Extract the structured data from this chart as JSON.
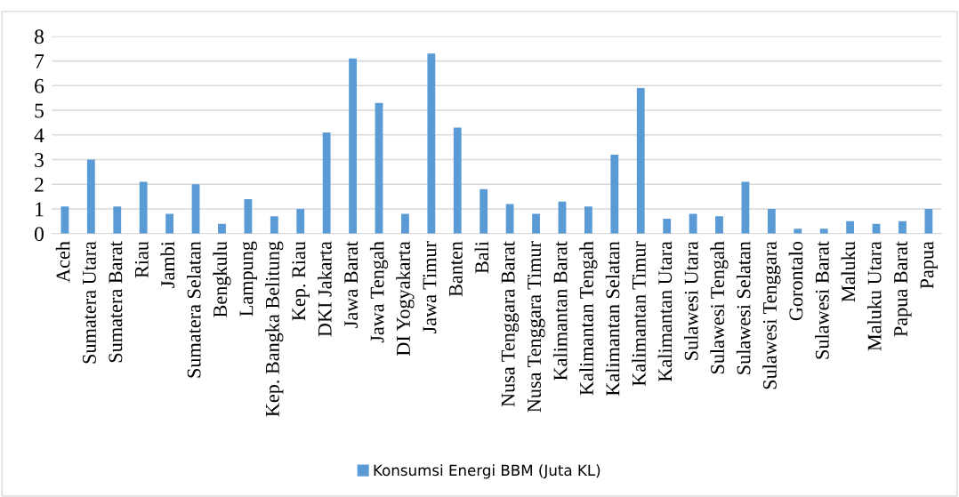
{
  "chart_data": {
    "type": "bar",
    "categories": [
      "Aceh",
      "Sumatera Utara",
      "Sumatera Barat",
      "Riau",
      "Jambi",
      "Sumatera Selatan",
      "Bengkulu",
      "Lampung",
      "Kep. Bangka Belitung",
      "Kep. Riau",
      "DKI Jakarta",
      "Jawa Barat",
      "Jawa Tengah",
      "DI Yogyakarta",
      "Jawa Timur",
      "Banten",
      "Bali",
      "Nusa Tenggara Barat",
      "Nusa Tenggara Timur",
      "Kalimantan Barat",
      "Kalimantan Tengah",
      "Kalimantan Selatan",
      "Kalimantan Timur",
      "Kalimantan Utara",
      "Sulawesi Utara",
      "Sulawesi Tengah",
      "Sulawesi Selatan",
      "Sulawesi Tenggara",
      "Gorontalo",
      "Sulawesi Barat",
      "Maluku",
      "Maluku Utara",
      "Papua Barat",
      "Papua"
    ],
    "series": [
      {
        "name": "Konsumsi Energi BBM (Juta KL)",
        "color": "#5b9bd5",
        "values": [
          1.1,
          3.0,
          1.1,
          2.1,
          0.8,
          2.0,
          0.4,
          1.4,
          0.7,
          1.0,
          4.1,
          7.1,
          5.3,
          0.8,
          7.3,
          4.3,
          1.8,
          1.2,
          0.8,
          1.3,
          1.1,
          3.2,
          5.9,
          0.6,
          0.8,
          0.7,
          2.1,
          1.0,
          0.2,
          0.2,
          0.5,
          0.4,
          0.5,
          1.0
        ]
      }
    ],
    "ylim": [
      0,
      8
    ],
    "yticks": [
      0,
      1,
      2,
      3,
      4,
      5,
      6,
      7,
      8
    ],
    "grid": "y",
    "legend": "bottom"
  }
}
